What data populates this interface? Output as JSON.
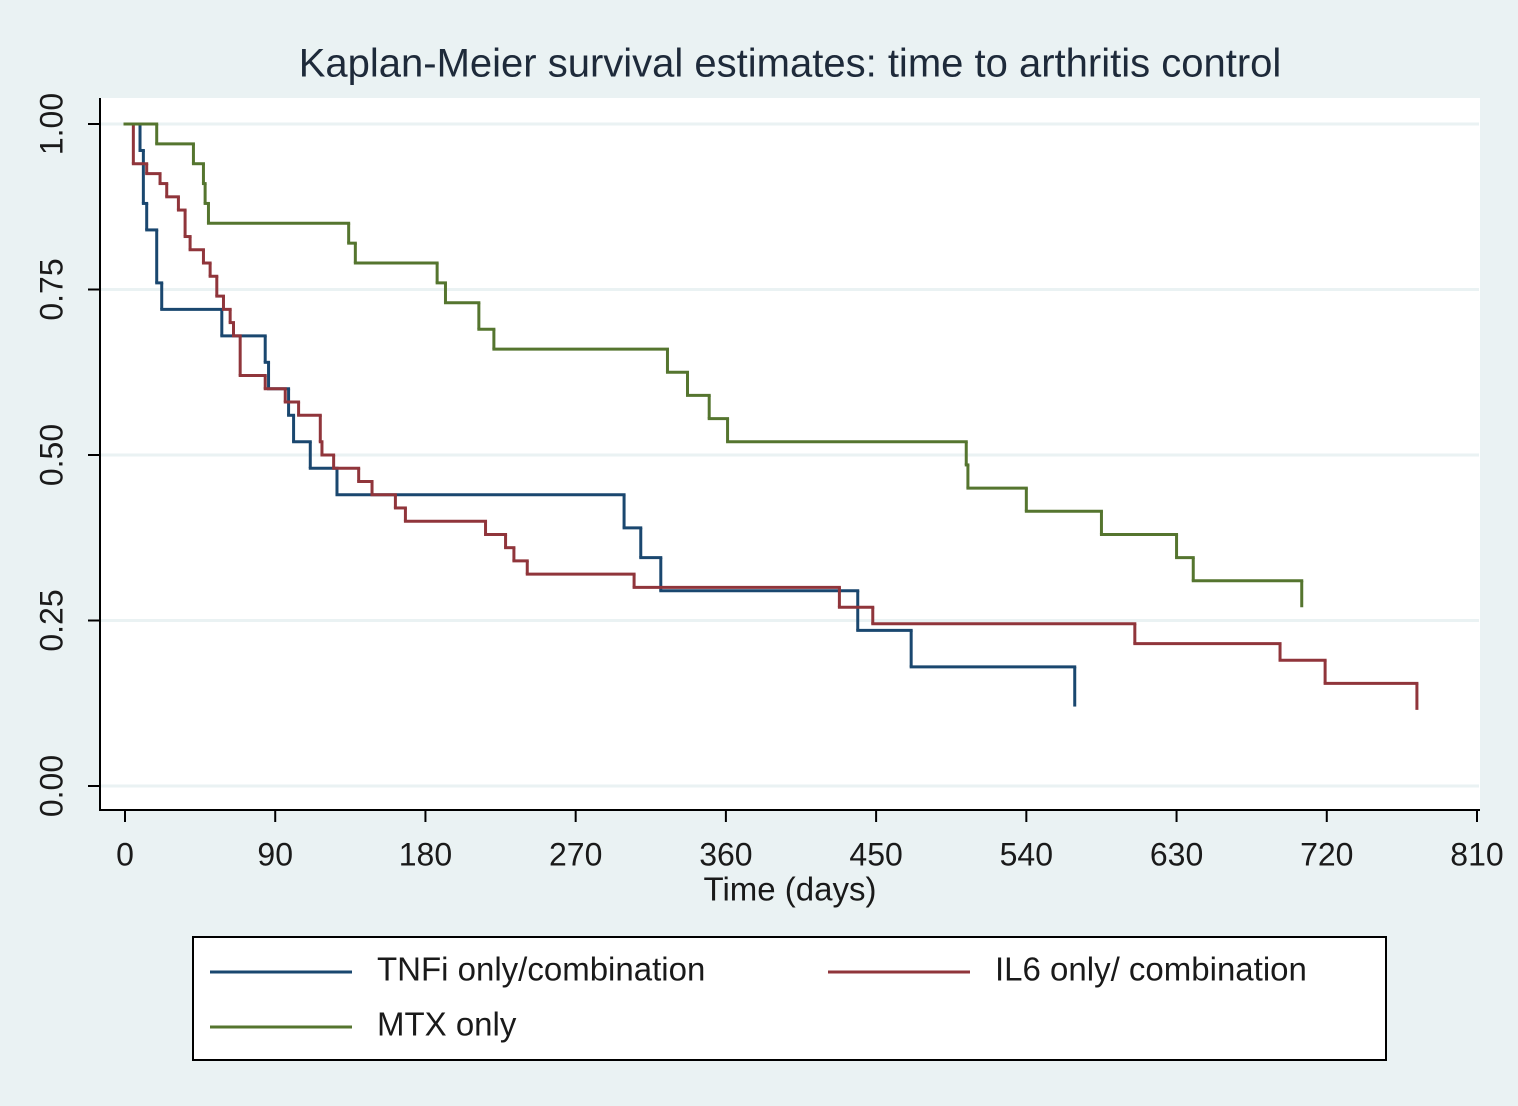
{
  "chart_data": {
    "type": "step",
    "title": "Kaplan-Meier survival estimates: time to arthritis control",
    "x_label": "Time (days)",
    "xlim": [
      0,
      810
    ],
    "xticks": [
      0,
      90,
      180,
      270,
      360,
      450,
      540,
      630,
      720,
      810
    ],
    "ylim": [
      0,
      1
    ],
    "yticks": [
      {
        "value": 0,
        "label": "0.00"
      },
      {
        "value": 0.25,
        "label": "0.25"
      },
      {
        "value": 0.5,
        "label": "0.50"
      },
      {
        "value": 0.75,
        "label": "0.75"
      },
      {
        "value": 1,
        "label": "1.00"
      }
    ],
    "grid": true,
    "legend_position": "bottom",
    "series": [
      {
        "name": "TNFi only/combination",
        "color": "#1a476f",
        "x": [
          0,
          9,
          11,
          13,
          19,
          22,
          58,
          84,
          86,
          98,
          101,
          111,
          127,
          299,
          309,
          321,
          439,
          471,
          569
        ],
        "values": [
          1.0,
          0.96,
          0.88,
          0.84,
          0.76,
          0.72,
          0.68,
          0.64,
          0.6,
          0.56,
          0.52,
          0.48,
          0.44,
          0.39,
          0.345,
          0.295,
          0.235,
          0.18,
          0.12
        ]
      },
      {
        "name": "IL6 only/ combination",
        "color": "#90353b",
        "x": [
          0,
          5,
          13,
          21,
          25,
          32,
          36,
          39,
          47,
          51,
          55,
          59,
          63,
          65,
          69,
          84,
          96,
          104,
          117,
          118,
          125,
          140,
          148,
          162,
          168,
          216,
          228,
          233,
          241,
          305,
          428,
          448,
          605,
          692,
          719,
          774
        ],
        "values": [
          1.0,
          0.94,
          0.925,
          0.91,
          0.89,
          0.87,
          0.83,
          0.81,
          0.79,
          0.77,
          0.74,
          0.72,
          0.7,
          0.68,
          0.62,
          0.6,
          0.58,
          0.56,
          0.52,
          0.5,
          0.48,
          0.46,
          0.44,
          0.42,
          0.4,
          0.38,
          0.36,
          0.34,
          0.32,
          0.3,
          0.27,
          0.245,
          0.215,
          0.19,
          0.155,
          0.115
        ]
      },
      {
        "name": "MTX only",
        "color": "#55752f",
        "x": [
          0,
          19,
          41,
          47,
          48,
          50,
          134,
          138,
          187,
          192,
          212,
          221,
          325,
          337,
          350,
          361,
          504,
          505,
          540,
          585,
          630,
          640,
          705
        ],
        "values": [
          1.0,
          0.97,
          0.94,
          0.91,
          0.88,
          0.85,
          0.82,
          0.79,
          0.76,
          0.73,
          0.69,
          0.66,
          0.625,
          0.59,
          0.555,
          0.52,
          0.485,
          0.45,
          0.415,
          0.38,
          0.345,
          0.31,
          0.27
        ]
      }
    ]
  }
}
